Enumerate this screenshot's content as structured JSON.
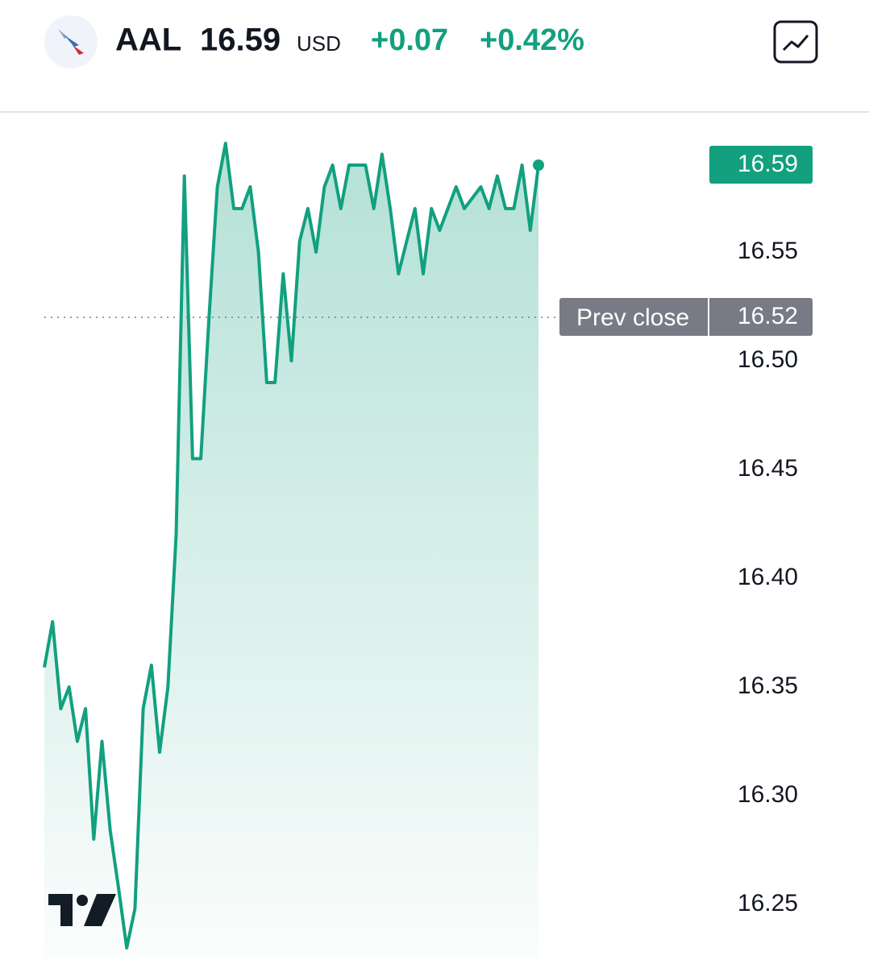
{
  "header": {
    "symbol": "AAL",
    "price": "16.59",
    "currency": "USD",
    "change": "+0.07",
    "change_percent": "+0.42%"
  },
  "chart_data": {
    "type": "area",
    "values": [
      16.359,
      16.38,
      16.34,
      16.35,
      16.325,
      16.34,
      16.28,
      16.325,
      16.284,
      16.258,
      16.23,
      16.248,
      16.34,
      16.36,
      16.32,
      16.35,
      16.42,
      16.585,
      16.455,
      16.455,
      16.52,
      16.58,
      16.6,
      16.57,
      16.57,
      16.58,
      16.55,
      16.49,
      16.49,
      16.54,
      16.5,
      16.555,
      16.57,
      16.55,
      16.58,
      16.59,
      16.57,
      16.59,
      16.59,
      16.59,
      16.57,
      16.595,
      16.57,
      16.54,
      16.555,
      16.57,
      16.54,
      16.57,
      16.56,
      16.57,
      16.58,
      16.57,
      16.575,
      16.58,
      16.57,
      16.585,
      16.57,
      16.57,
      16.59,
      16.56,
      16.59
    ],
    "color": "#12a07f",
    "ylim": [
      16.225,
      16.615
    ],
    "yticks": [
      16.25,
      {
        "value": 16.3,
        "label": "16.30"
      },
      16.35,
      {
        "value": 16.4,
        "label": "16.40"
      },
      16.45,
      {
        "value": 16.5,
        "label": "16.50"
      },
      16.55
    ],
    "last_value": 16.59,
    "prev_close": {
      "label": "Prev close",
      "value": 16.52
    }
  }
}
